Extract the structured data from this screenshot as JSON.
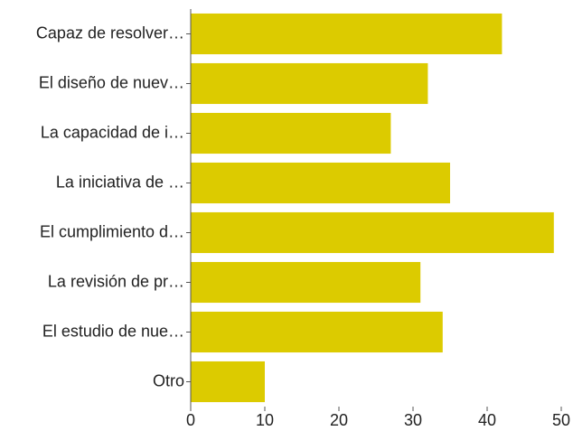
{
  "chart_data": {
    "type": "barh",
    "categories": [
      "Capaz de resolver…",
      "El diseño de nuev…",
      "La capacidad de i…",
      "La iniciativa de …",
      "El cumplimiento d…",
      "La revisión de pr…",
      "El estudio de nue…",
      "Otro"
    ],
    "values": [
      42,
      32,
      27,
      35,
      49,
      31,
      34,
      10
    ],
    "color": "#dccb00",
    "xlim": [
      0,
      50
    ],
    "xticks": [
      0,
      10,
      20,
      30,
      40,
      50
    ],
    "grid": false
  }
}
